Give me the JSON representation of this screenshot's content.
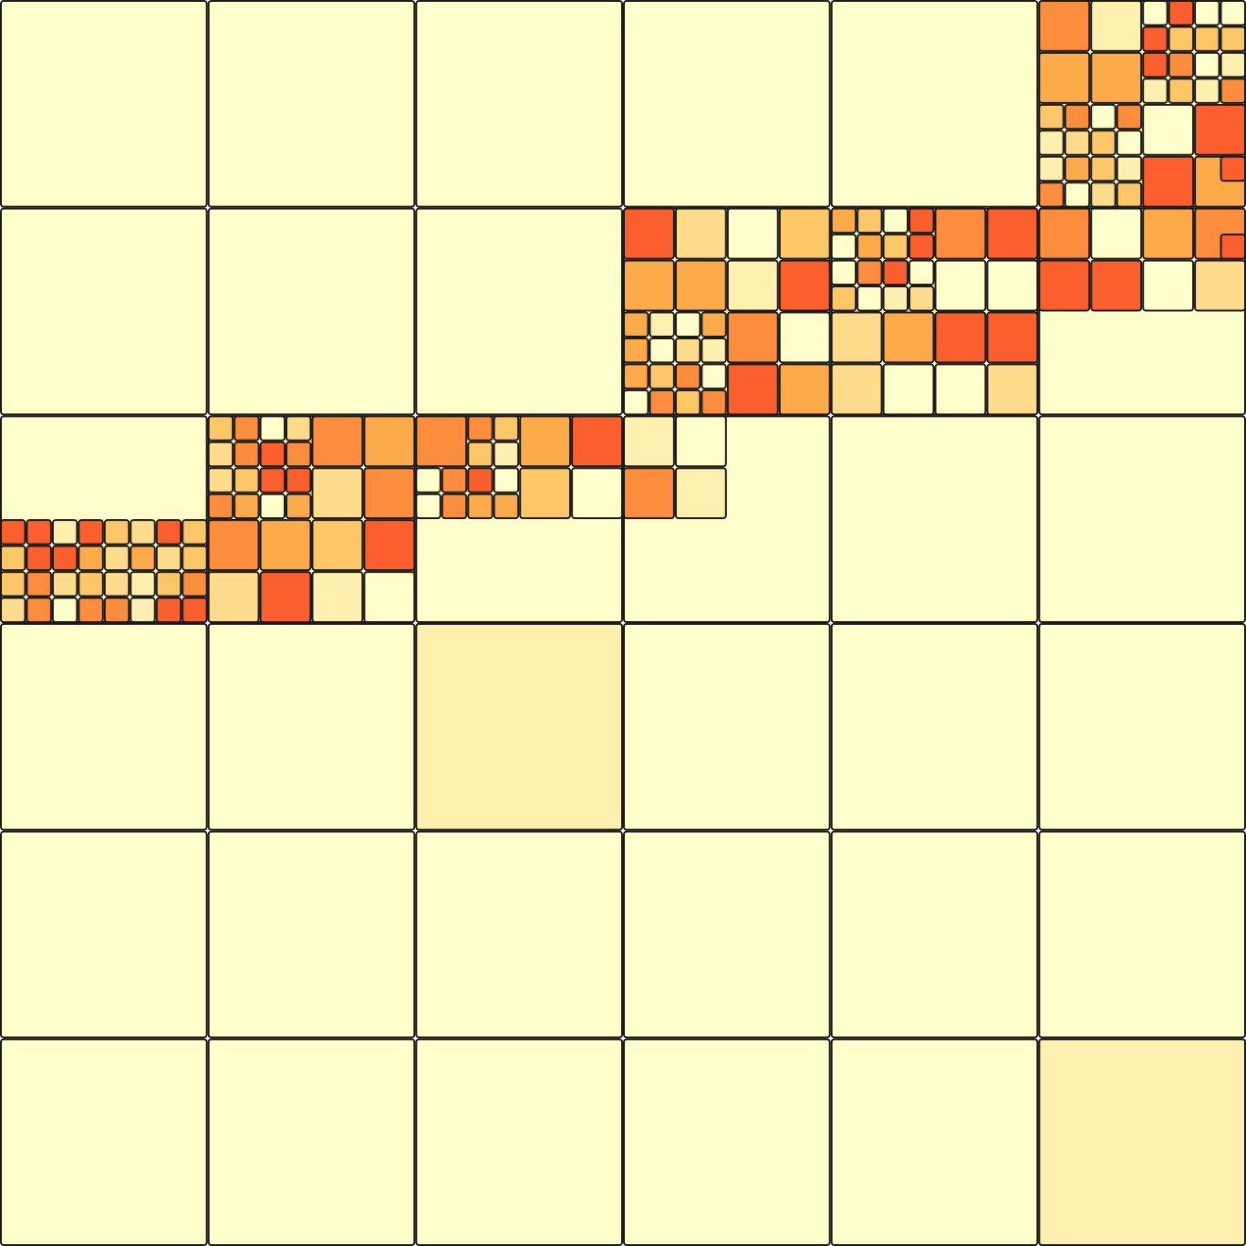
{
  "mode": "quadtree-heatmap",
  "palette": {
    "empty": "#ffffcc",
    "level_1": "#fff0b0",
    "level_2": "#fedc8c",
    "level_3": "#fdc666",
    "level_4": "#fdaa4a",
    "level_5": "#fc8d3c",
    "level_6": "#fb5f2e",
    "border": "#1a1a1a"
  },
  "heavy_cells": [
    "r2c4",
    "r2c8",
    "r2c9",
    "r2c11",
    "r3c1",
    "r3c5",
    "r3c8",
    "r3c9",
    "r4c4",
    "r4c5",
    "r4c6",
    "r5c0",
    "r5c1",
    "r5c2",
    "r5c3",
    "r5c5",
    "r6c1",
    "r6c3",
    "r6c4"
  ],
  "medium_tint_cells": [
    "r4c2",
    "r5c2",
    "r6c10"
  ],
  "notes_visible": false
}
